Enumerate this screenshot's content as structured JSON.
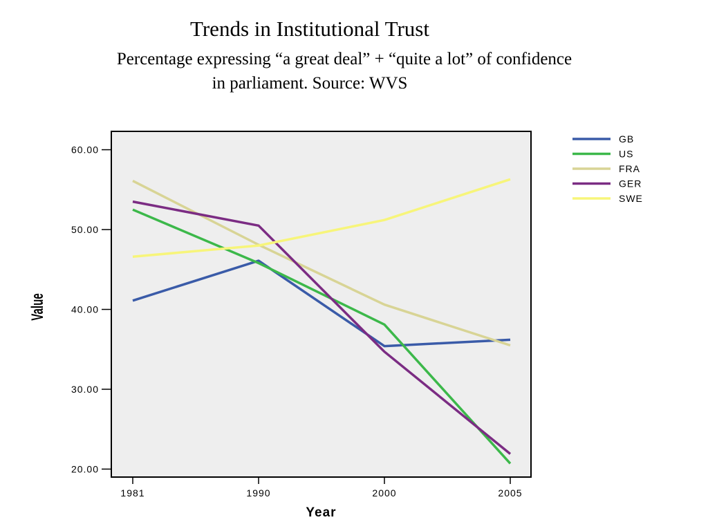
{
  "chart_data": {
    "type": "line",
    "title": "Trends in Institutional Trust",
    "subtitle_line1": "Percentage expressing “a great deal” + “quite a lot” of confidence",
    "subtitle_line2": "in parliament. Source: WVS",
    "xlabel": "Year",
    "ylabel": "Value",
    "categories": [
      "1981",
      "1990",
      "2000",
      "2005"
    ],
    "y_ticks": [
      "20.00",
      "30.00",
      "40.00",
      "50.00",
      "60.00"
    ],
    "ylim": [
      19,
      62.3
    ],
    "grid": false,
    "legend_position": "right",
    "series": [
      {
        "name": "GB",
        "color": "#3a5ba8",
        "values": [
          41.1,
          46.1,
          35.4,
          36.2
        ]
      },
      {
        "name": "US",
        "color": "#3cb84a",
        "values": [
          52.5,
          45.8,
          38.1,
          20.7
        ]
      },
      {
        "name": "FRA",
        "color": "#d8d495",
        "values": [
          56.1,
          48.1,
          40.6,
          35.5
        ]
      },
      {
        "name": "GER",
        "color": "#7b2c83",
        "values": [
          53.5,
          50.5,
          34.7,
          21.9
        ]
      },
      {
        "name": "SWE",
        "color": "#f7f57a",
        "values": [
          46.6,
          48.0,
          51.2,
          56.3
        ]
      }
    ]
  }
}
